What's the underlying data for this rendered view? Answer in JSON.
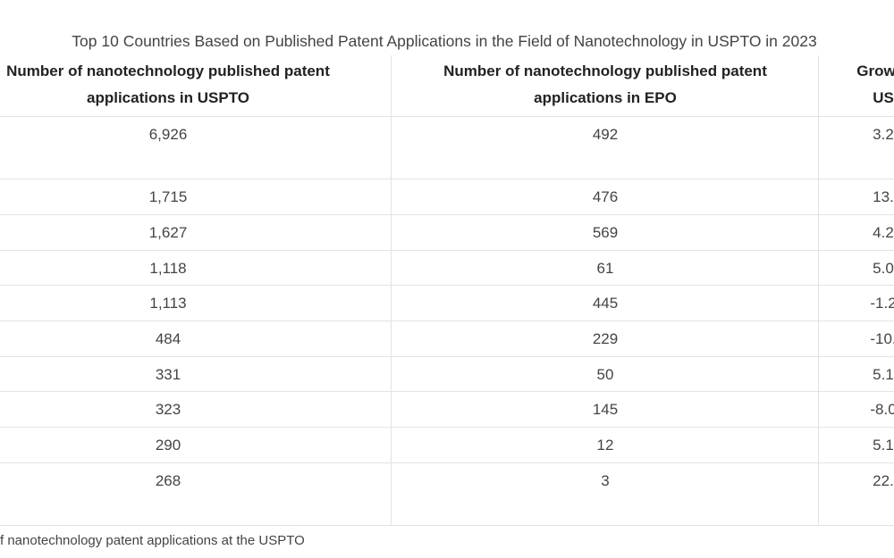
{
  "title": "Top 10 Countries Based on Published Patent Applications in the Field of Nanotechnology in USPTO in 2023",
  "table": {
    "header": [
      [
        "Number of nanotechnology published patent",
        "applications in USPTO"
      ],
      [
        "Number of nanotechnology published patent",
        "applications in EPO"
      ],
      [
        "Growth",
        "US"
      ]
    ],
    "rows": [
      [
        "6,926",
        "492",
        "3.2"
      ],
      [
        "1,715",
        "476",
        "13."
      ],
      [
        "1,627",
        "569",
        "4.2"
      ],
      [
        "1,118",
        "61",
        "5.0"
      ],
      [
        "1,113",
        "445",
        "-1.2"
      ],
      [
        "484",
        "229",
        "-10."
      ],
      [
        "331",
        "50",
        "5.1"
      ],
      [
        "323",
        "145",
        "-8.0"
      ],
      [
        "290",
        "12",
        "5.1"
      ],
      [
        "268",
        "3",
        "22."
      ]
    ]
  },
  "footnote": "f nanotechnology patent applications at the USPTO"
}
